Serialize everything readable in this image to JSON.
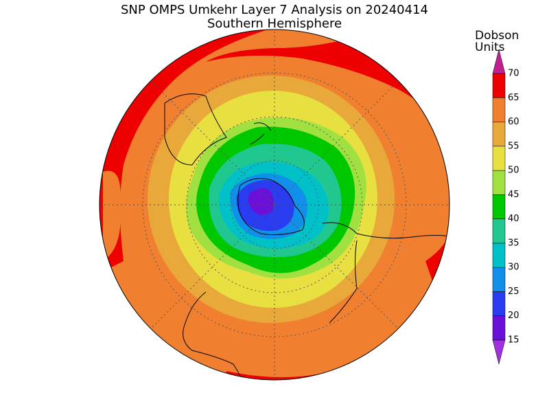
{
  "title": "SNP OMPS Umkehr Layer 7 Analysis on 20240414",
  "subtitle": "Southern Hemisphere",
  "colorbar": {
    "label": [
      "Dobson",
      "Units"
    ],
    "ticks": [
      15,
      20,
      25,
      30,
      35,
      40,
      45,
      50,
      55,
      60,
      65,
      70
    ],
    "band_colors": [
      "#6a10d8",
      "#2a3cf0",
      "#1090e8",
      "#00c0c8",
      "#20c890",
      "#00c800",
      "#a0e040",
      "#e8e040",
      "#e8a83a",
      "#f08030",
      "#ee0000"
    ],
    "under_color": "#a030e0",
    "over_color": "#c02090"
  }
}
